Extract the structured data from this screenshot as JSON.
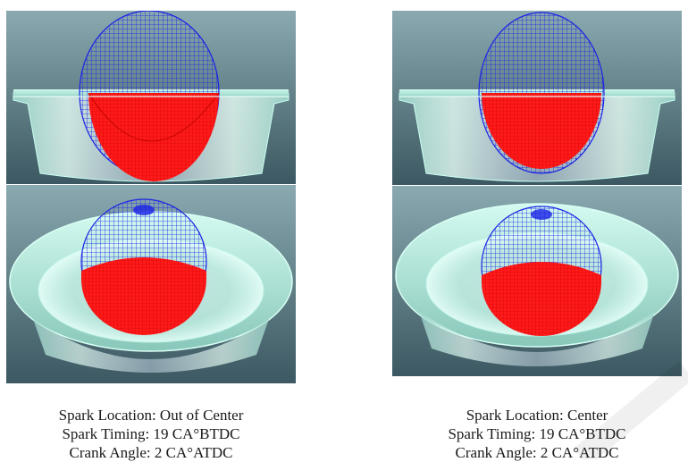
{
  "left_column": {
    "spark_location": "Spark Location: Out of Center",
    "spark_timing": "Spark Timing: 19 CA°BTDC",
    "crank_angle": "Crank Angle: 2 CA°ATDC"
  },
  "right_column": {
    "spark_location": "Spark Location: Center",
    "spark_timing": "Spark Timing: 19 CA°BTDC",
    "crank_angle": "Crank Angle: 2 CA°ATDC"
  },
  "colors": {
    "wireframe": "#1a22e6",
    "flame": "#ff1010",
    "bowl": "#a8e8dc",
    "background_top": "#7fa0a8",
    "background_bottom": "#3a5560"
  }
}
